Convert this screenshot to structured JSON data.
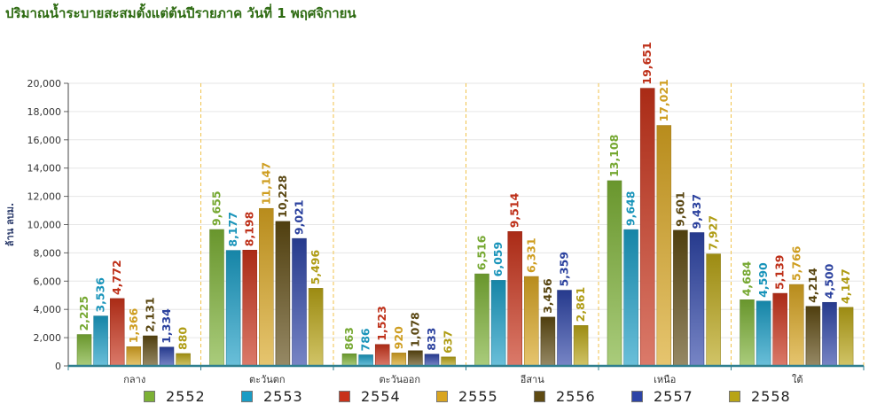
{
  "title": "ปริมาณน้ำระบายสะสมตั้งแต่ต้นปีรายภาค วันที่ 1 พฤศจิกายน",
  "chart_data": {
    "type": "bar",
    "title": "ปริมาณน้ำระบายสะสมตั้งแต่ต้นปีรายภาค วันที่ 1 พฤศจิกายน",
    "ylabel": "ล้าน ลบม.",
    "xlabel": "",
    "ylim": [
      0,
      20000
    ],
    "yticks": [
      "0",
      "2,000",
      "4,000",
      "6,000",
      "8,000",
      "10,000",
      "12,000",
      "14,000",
      "16,000",
      "18,000",
      "20,000"
    ],
    "grid": true,
    "legend_position": "bottom",
    "categories": [
      "กลาง",
      "ตะวันตก",
      "ตะวันออก",
      "อีสาน",
      "เหนือ",
      "ใต้"
    ],
    "series": [
      {
        "name": "2552",
        "color": "#7cb135",
        "values": [
          2225,
          9655,
          863,
          6516,
          13108,
          4684
        ],
        "labels": [
          "2,225",
          "9,655",
          "863",
          "6,516",
          "13,108",
          "4,684"
        ]
      },
      {
        "name": "2553",
        "color": "#1a9cc4",
        "values": [
          3536,
          8177,
          786,
          6059,
          9648,
          4590
        ],
        "labels": [
          "3,536",
          "8,177",
          "786",
          "6,059",
          "9,648",
          "4,590"
        ]
      },
      {
        "name": "2554",
        "color": "#c8321a",
        "values": [
          4772,
          8198,
          1523,
          9514,
          19651,
          5139
        ],
        "labels": [
          "4,772",
          "8,198",
          "1,523",
          "9,514",
          "19,651",
          "5,139"
        ]
      },
      {
        "name": "2555",
        "color": "#d9a521",
        "values": [
          1366,
          11147,
          920,
          6331,
          17021,
          5766
        ],
        "labels": [
          "1,366",
          "11,147",
          "920",
          "6,331",
          "17,021",
          "5,766"
        ]
      },
      {
        "name": "2556",
        "color": "#5e4a12",
        "values": [
          2131,
          10228,
          1078,
          3456,
          9601,
          4214
        ],
        "labels": [
          "2,131",
          "10,228",
          "1,078",
          "3,456",
          "9,601",
          "4,214"
        ]
      },
      {
        "name": "2557",
        "color": "#2d44a6",
        "values": [
          1334,
          9021,
          833,
          5359,
          9437,
          4500
        ],
        "labels": [
          "1,334",
          "9,021",
          "833",
          "5,359",
          "9,437",
          "4,500"
        ]
      },
      {
        "name": "2558",
        "color": "#b8a415",
        "values": [
          880,
          5496,
          637,
          2861,
          7927,
          4147
        ],
        "labels": [
          "880",
          "5,496",
          "637",
          "2,861",
          "7,927",
          "4,147"
        ]
      }
    ]
  }
}
